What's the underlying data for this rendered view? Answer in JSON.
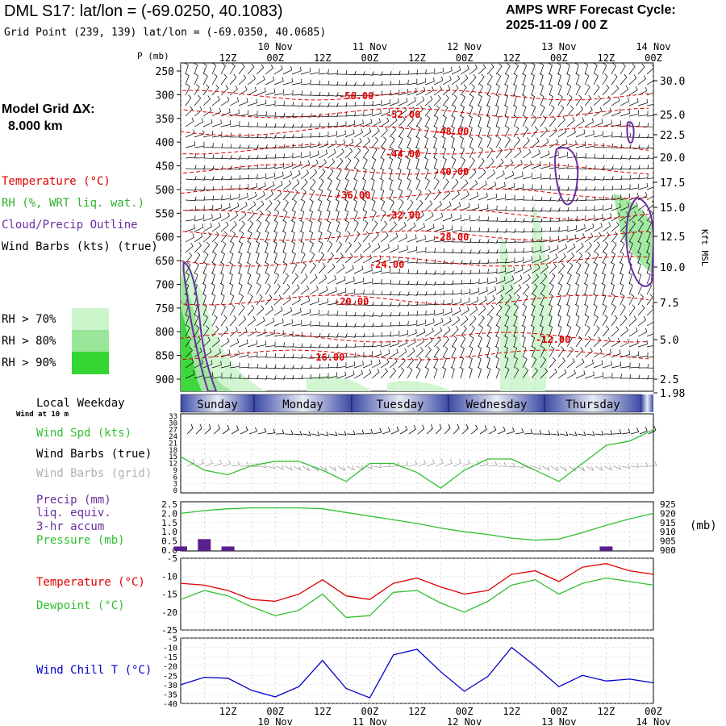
{
  "header": {
    "title": "DML S17:  lat/lon = (-69.0250, 40.1083)",
    "gridpoint": "Grid Point (239, 139) lat/lon = (-69.0350, 40.0685)",
    "cycle_line1": "AMPS WRF Forecast Cycle:",
    "cycle_line2": "2025-11-09 / 00  Z"
  },
  "legend": {
    "model_grid": "Model Grid ΔX:",
    "model_dx": "8.000 km",
    "temperature": "Temperature (°C)",
    "rh": "RH (%, WRT liq. wat.)",
    "cloud": "Cloud/Precip Outline",
    "wind": "Wind Barbs (kts) (true)",
    "rh70": "RH > 70%",
    "rh80": "RH > 80%",
    "rh90": "RH > 90%",
    "p_unit": "P (mb)",
    "kft": "Kft MSL"
  },
  "colors": {
    "temperature": "#e00000",
    "rh": "#30b030",
    "cloud": "#6a2fa0",
    "wind_grid": "#a0a0a0",
    "precip": "#5a1f8f",
    "pressure": "#30c030",
    "dewpoint": "#30c030",
    "wind_chill": "#0000cc",
    "rh70": "#ccf5cc",
    "rh80": "#99e699",
    "rh90": "#33d633",
    "day_band_dark": "#3b4aa6",
    "day_band_light": "#e8ebf5"
  },
  "time_axis": {
    "tick_labels_top": [
      "12Z",
      "00Z",
      "12Z",
      "00Z",
      "12Z",
      "00Z",
      "12Z",
      "00Z",
      "12Z",
      "00Z"
    ],
    "date_labels": [
      "10 Nov",
      "11 Nov",
      "12 Nov",
      "13 Nov",
      "14 Nov"
    ],
    "bottom_labels": [
      "12Z",
      "00Z",
      "12Z",
      "00Z",
      "12Z",
      "00Z",
      "12Z",
      "00Z",
      "12Z",
      "00Z"
    ]
  },
  "weekday": {
    "label": "Local Weekday",
    "sublabel": "Wind at 10 m",
    "days": [
      "Sunday",
      "Monday",
      "Tuesday",
      "Wednesday",
      "Thursday"
    ]
  },
  "panels": {
    "wind": {
      "l1": "Wind Spd (kts)",
      "l2": "Wind Barbs (true)",
      "l3": "Wind Barbs (grid)"
    },
    "precip": {
      "l1": "Precip (mm)",
      "l2": "liq. equiv.",
      "l3": "3-hr accum",
      "l4": "Pressure (mb)",
      "unit": "(mb)"
    },
    "temp": {
      "l1": "Temperature (°C)",
      "l2": "Dewpoint (°C)"
    },
    "chill": {
      "l1": "Wind Chill T (°C)"
    }
  },
  "chart_data": [
    {
      "type": "line",
      "title": "Time-height cross section",
      "ylabel": "P (mb)",
      "y_ticks": [
        "250",
        "300",
        "350",
        "400",
        "450",
        "500",
        "550",
        "600",
        "650",
        "700",
        "750",
        "800",
        "850",
        "900"
      ],
      "y2_ticks": [
        "30.0",
        "25.0",
        "22.5",
        "20.0",
        "17.5",
        "15.0",
        "12.5",
        "10.0",
        "7.5",
        "5.0",
        "2.5",
        "1.98"
      ],
      "temperature_contour_labels": [
        "-56.00",
        "-52.00",
        "-48.00",
        "-44.00",
        "-40.00",
        "-36.00",
        "-32.00",
        "-28.00",
        "-24.00",
        "-20.00",
        "-16.00",
        "-12.00"
      ]
    },
    {
      "type": "line",
      "title": "Wind speed",
      "ylabel": "Wind Spd (kts)",
      "ylim": [
        0,
        33
      ],
      "y_ticks": [
        "33",
        "30",
        "27",
        "24",
        "21",
        "18",
        "15",
        "12",
        "9",
        "6",
        "3",
        "0"
      ],
      "x": [
        0,
        6,
        12,
        18,
        24,
        30,
        36,
        42,
        48,
        54,
        60,
        66,
        72,
        78,
        84,
        90,
        96,
        102,
        108,
        114,
        120
      ],
      "series": [
        {
          "name": "Wind Spd (kts)",
          "values": [
            15,
            9,
            7,
            11,
            13,
            13,
            9,
            4,
            12,
            12,
            8,
            1,
            9,
            14,
            14,
            9,
            4,
            12,
            20,
            22,
            27
          ]
        }
      ]
    },
    {
      "type": "line",
      "title": "Precip and pressure",
      "y_ticks": [
        "2.5",
        "2.0",
        "1.5",
        "1.0",
        "0.5",
        "0.0"
      ],
      "y2_ticks": [
        "925",
        "920",
        "915",
        "910",
        "905",
        "900"
      ],
      "ylim": [
        0,
        2.5
      ],
      "y2lim": [
        900,
        925
      ],
      "x": [
        0,
        6,
        12,
        18,
        24,
        30,
        36,
        42,
        48,
        54,
        60,
        66,
        72,
        78,
        84,
        90,
        96,
        102,
        108,
        114,
        120
      ],
      "series": [
        {
          "name": "Pressure (mb)",
          "values": [
            920,
            921.5,
            922.5,
            923,
            923,
            923,
            922.5,
            920.5,
            918.5,
            916.5,
            914.5,
            912,
            910,
            908.5,
            906.5,
            905.5,
            906,
            909.5,
            913.5,
            917,
            920
          ]
        },
        {
          "name": "Precip (mm)",
          "values": [
            0.2,
            0.6,
            0.2,
            0,
            0,
            0,
            0,
            0,
            0,
            0,
            0,
            0,
            0,
            0,
            0,
            0,
            0,
            0,
            0.2,
            0,
            0
          ]
        }
      ]
    },
    {
      "type": "line",
      "title": "Temperature and dewpoint",
      "ylim": [
        -25,
        -5
      ],
      "y_ticks": [
        "-5",
        "-10",
        "-15",
        "-20",
        "-25"
      ],
      "x": [
        0,
        6,
        12,
        18,
        24,
        30,
        36,
        42,
        48,
        54,
        60,
        66,
        72,
        78,
        84,
        90,
        96,
        102,
        108,
        114,
        120
      ],
      "series": [
        {
          "name": "Temperature (°C)",
          "values": [
            -12,
            -12.5,
            -14,
            -16.5,
            -17,
            -15,
            -11,
            -15.5,
            -16.5,
            -12,
            -10.5,
            -13,
            -15,
            -14,
            -9.5,
            -8.5,
            -11.5,
            -7.5,
            -6.5,
            -8.5,
            -9.5
          ]
        },
        {
          "name": "Dewpoint (°C)",
          "values": [
            -16.5,
            -14,
            -15.5,
            -18.5,
            -21,
            -19.5,
            -15,
            -21.5,
            -21,
            -14.5,
            -14,
            -17.5,
            -20,
            -17,
            -12.5,
            -11,
            -15,
            -12,
            -10.5,
            -11.5,
            -12.5
          ]
        }
      ]
    },
    {
      "type": "line",
      "title": "Wind chill",
      "ylim": [
        -40,
        -5
      ],
      "y_ticks": [
        "-5",
        "-10",
        "-15",
        "-20",
        "-25",
        "-30",
        "-35",
        "-40"
      ],
      "x": [
        0,
        6,
        12,
        18,
        24,
        30,
        36,
        42,
        48,
        54,
        60,
        66,
        72,
        78,
        84,
        90,
        96,
        102,
        108,
        114,
        120
      ],
      "series": [
        {
          "name": "Wind Chill T (°C)",
          "values": [
            -30,
            -26,
            -26.5,
            -33,
            -36.5,
            -31,
            -17,
            -32,
            -37,
            -14,
            -11,
            -23,
            -33.5,
            -25.5,
            -10,
            -20,
            -31,
            -25,
            -28,
            -27,
            -29
          ]
        }
      ]
    }
  ]
}
